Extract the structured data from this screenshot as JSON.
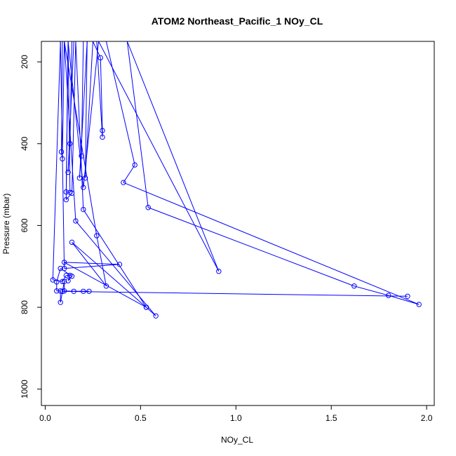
{
  "chart_data": {
    "type": "line",
    "title": "ATOM2 Northeast_Pacific_1 NOy_CL",
    "xlabel": "NOy_CL",
    "ylabel": "Pressure (mbar)",
    "xlim": [
      -0.02,
      2.04
    ],
    "ylim": [
      1040,
      150
    ],
    "y_reversed": true,
    "grid": false,
    "legend": "none",
    "xticks": [
      0.0,
      0.5,
      1.0,
      1.5,
      2.0
    ],
    "xtick_labels": [
      "0.0",
      "0.5",
      "1.0",
      "1.5",
      "2.0"
    ],
    "yticks": [
      200,
      400,
      600,
      800,
      1000
    ],
    "ytick_labels": [
      "200",
      "400",
      "600",
      "800",
      "1000"
    ],
    "series": [
      {
        "color": "#0000ff",
        "points": [
          [
            0.09,
            150
          ],
          [
            0.085,
            420
          ],
          [
            0.09,
            437
          ],
          [
            0.1,
            150
          ],
          [
            0.14,
            150
          ],
          [
            0.13,
            400
          ],
          [
            0.12,
            470
          ],
          [
            0.15,
            150
          ],
          [
            0.2,
            150
          ],
          [
            0.19,
            430
          ],
          [
            0.18,
            484
          ],
          [
            0.22,
            150
          ],
          [
            0.21,
            484
          ],
          [
            0.25,
            150
          ],
          [
            0.29,
            190
          ],
          [
            0.3,
            368
          ],
          [
            0.3,
            384
          ],
          [
            0.27,
            150
          ],
          [
            0.32,
            150
          ],
          [
            0.47,
            452
          ],
          [
            0.41,
            495
          ],
          [
            1.96,
            793
          ],
          [
            1.8,
            771
          ],
          [
            1.62,
            748
          ],
          [
            0.54,
            556
          ],
          [
            0.43,
            150
          ],
          [
            0.91,
            712
          ],
          [
            0.28,
            150
          ],
          [
            0.2,
            507
          ],
          [
            0.12,
            150
          ],
          [
            0.11,
            518
          ],
          [
            0.13,
            519
          ],
          [
            0.12,
            150
          ],
          [
            0.11,
            537
          ],
          [
            0.14,
            521
          ],
          [
            0.16,
            150
          ],
          [
            0.2,
            561
          ],
          [
            0.53,
            800
          ],
          [
            0.58,
            821
          ],
          [
            0.16,
            589
          ],
          [
            0.1,
            150
          ],
          [
            0.27,
            625
          ],
          [
            0.32,
            748
          ],
          [
            0.14,
            641
          ],
          [
            0.53,
            800
          ],
          [
            0.1,
            690
          ],
          [
            0.39,
            695
          ],
          [
            0.1,
            705
          ],
          [
            0.08,
            150
          ],
          [
            0.04,
            733
          ],
          [
            0.09,
            737
          ],
          [
            0.11,
            722
          ],
          [
            0.13,
            722
          ],
          [
            0.12,
            735
          ],
          [
            0.14,
            724
          ],
          [
            0.08,
            705
          ],
          [
            0.06,
            738
          ],
          [
            0.06,
            760
          ],
          [
            0.08,
            760
          ],
          [
            0.08,
            788
          ],
          [
            0.1,
            737
          ],
          [
            0.1,
            760
          ],
          [
            0.15,
            761
          ],
          [
            0.2,
            761
          ],
          [
            0.23,
            761
          ],
          [
            0.09,
            761
          ],
          [
            1.9,
            773
          ]
        ]
      }
    ]
  }
}
